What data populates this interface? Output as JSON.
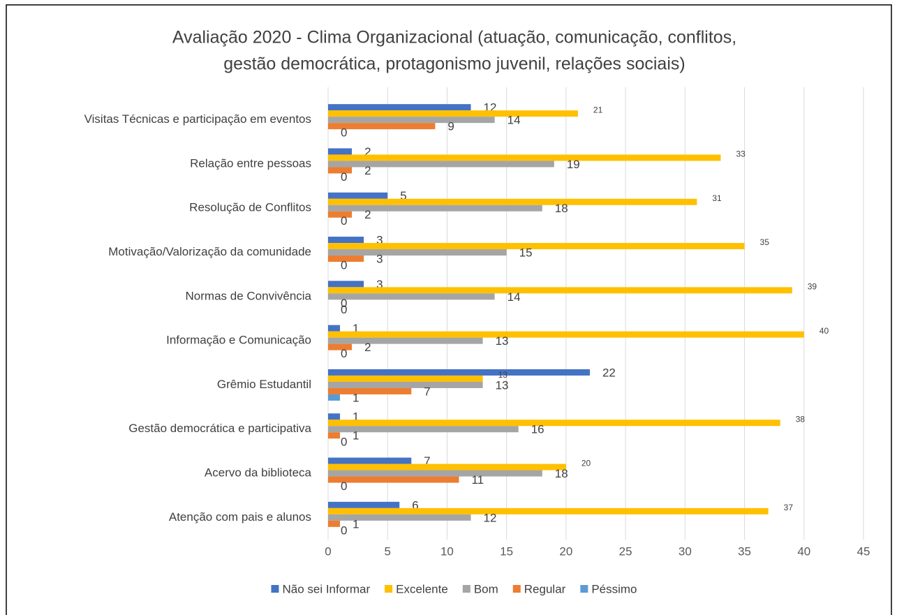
{
  "chart_data": {
    "type": "bar",
    "orientation": "horizontal",
    "title": [
      "Avaliação 2020 - Clima Organizacional (atuação, comunicação, conflitos,",
      "gestão democrática, protagonismo juvenil, relações sociais)"
    ],
    "categories": [
      "Visitas Técnicas e participação em eventos",
      "Relação entre pessoas",
      "Resolução de Conflitos",
      "Motivação/Valorização da comunidade",
      "Normas de Convivência",
      "Informação e Comunicação",
      "Grêmio Estudantil",
      "Gestão democrática e participativa",
      "Acervo da biblioteca",
      "Atenção com pais e alunos"
    ],
    "series": [
      {
        "name": "Não sei Informar",
        "color": "#4472c4",
        "values": [
          12,
          2,
          5,
          3,
          3,
          1,
          22,
          1,
          7,
          6
        ]
      },
      {
        "name": "Excelente",
        "color": "#ffc000",
        "values": [
          21,
          33,
          31,
          35,
          39,
          40,
          13,
          38,
          20,
          37
        ]
      },
      {
        "name": "Bom",
        "color": "#a5a5a5",
        "values": [
          14,
          19,
          18,
          15,
          14,
          13,
          13,
          16,
          18,
          12
        ]
      },
      {
        "name": "Regular",
        "color": "#ed7d31",
        "values": [
          9,
          2,
          2,
          3,
          0,
          2,
          7,
          1,
          11,
          1
        ]
      },
      {
        "name": "Péssimo",
        "color": "#5b9bd5",
        "values": [
          0,
          0,
          0,
          0,
          0,
          0,
          1,
          0,
          0,
          0
        ]
      }
    ],
    "xlim": [
      0,
      45
    ],
    "xticks": [
      0,
      5,
      10,
      15,
      20,
      25,
      30,
      35,
      40,
      45
    ],
    "grid": true,
    "legend": "bottom"
  }
}
